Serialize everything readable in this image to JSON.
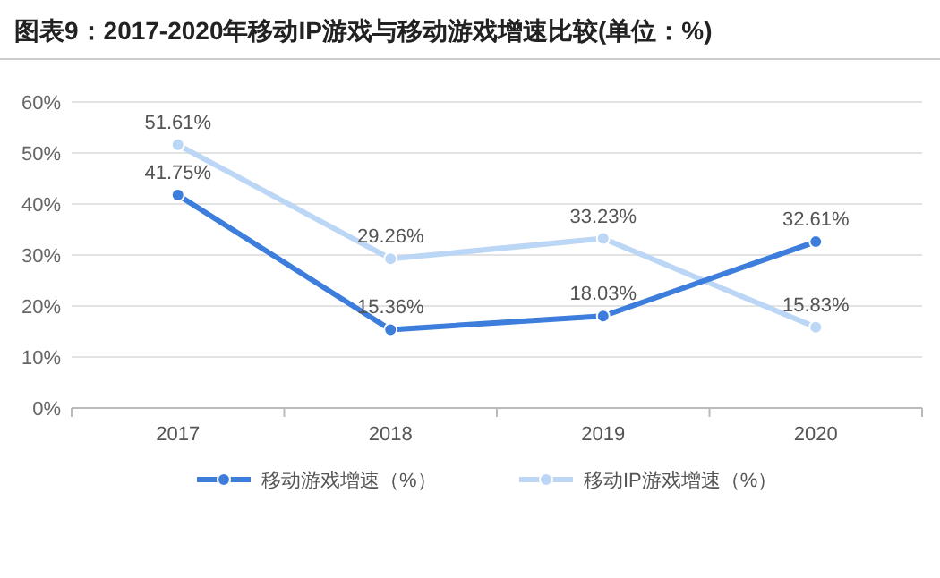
{
  "chart_data": {
    "type": "line",
    "title": "图表9：2017-2020年移动IP游戏与移动游戏增速比较(单位：%)",
    "categories": [
      "2017",
      "2018",
      "2019",
      "2020"
    ],
    "series": [
      {
        "name": "移动游戏增速（%）",
        "color": "#3d7ddb",
        "values": [
          41.75,
          15.36,
          18.03,
          32.61
        ],
        "value_labels": [
          "41.75%",
          "15.36%",
          "18.03%",
          "32.61%"
        ]
      },
      {
        "name": "移动IP游戏增速（%）",
        "color": "#bcd6f5",
        "values": [
          51.61,
          29.26,
          33.23,
          15.83
        ],
        "value_labels": [
          "51.61%",
          "29.26%",
          "33.23%",
          "15.83%"
        ]
      }
    ],
    "ylim": [
      0,
      60
    ],
    "yticks": [
      {
        "value": 0,
        "label": "0%"
      },
      {
        "value": 10,
        "label": "10%"
      },
      {
        "value": 20,
        "label": "20%"
      },
      {
        "value": 30,
        "label": "30%"
      },
      {
        "value": 40,
        "label": "40%"
      },
      {
        "value": 50,
        "label": "50%"
      },
      {
        "value": 60,
        "label": "60%"
      }
    ],
    "grid": "y",
    "legend": "bottom",
    "marker": "circle",
    "line_style": "solid"
  }
}
